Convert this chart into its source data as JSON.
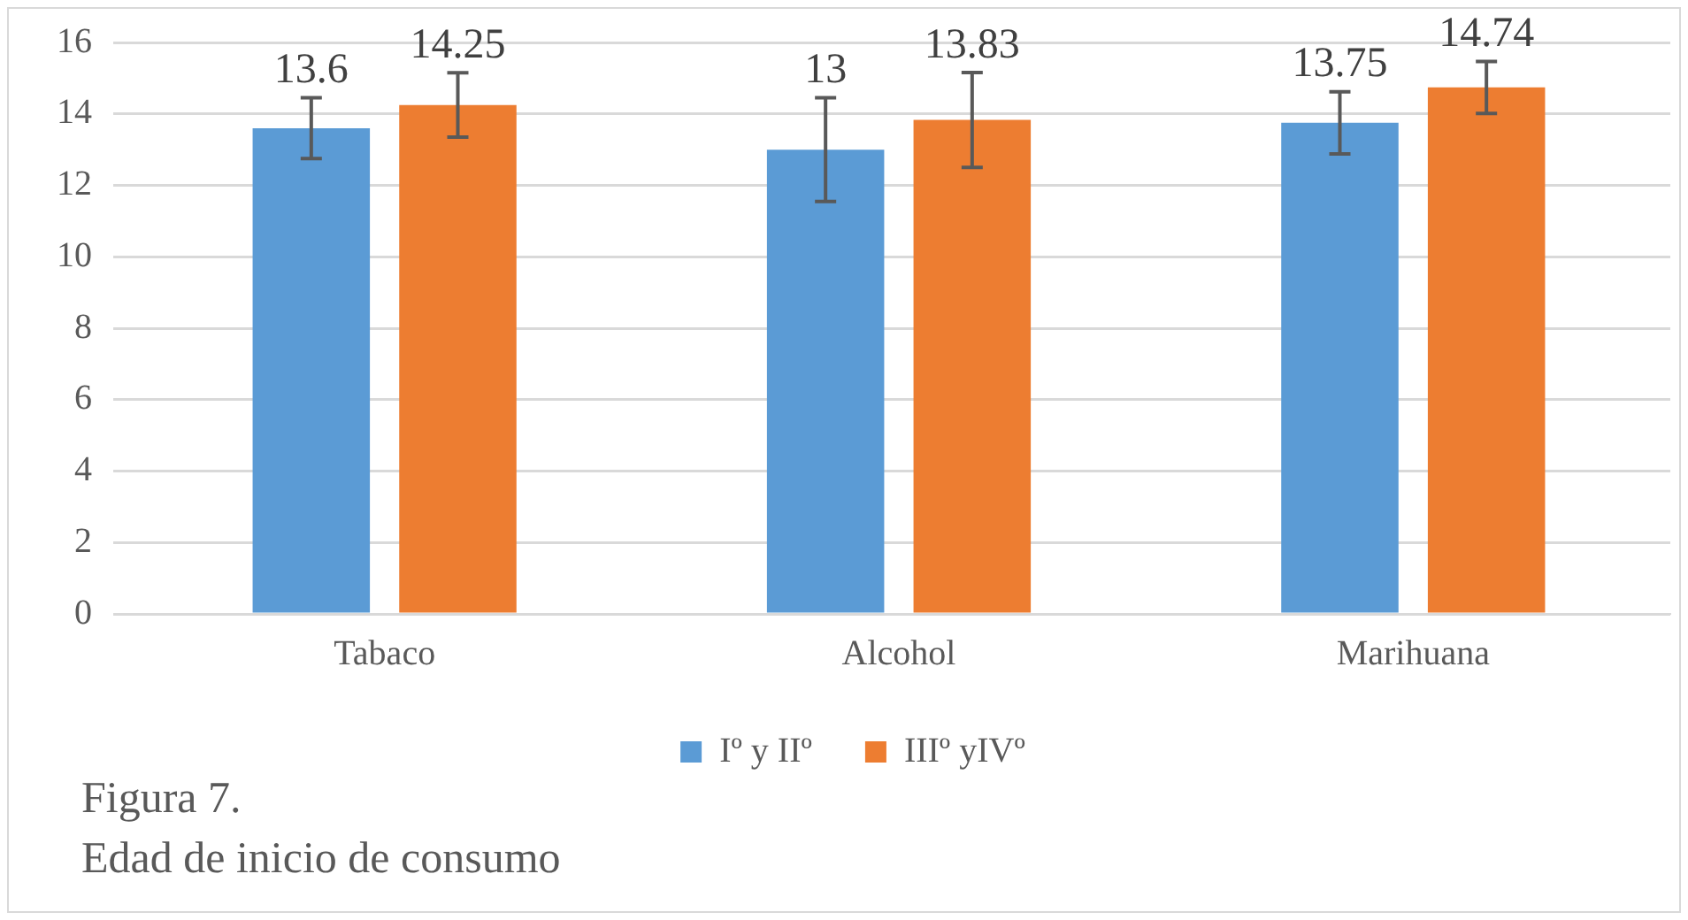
{
  "chart_data": {
    "type": "bar",
    "title": "Figura 7.",
    "subtitle": "Edad de inicio de consumo",
    "categories": [
      "Tabaco",
      "Alcohol",
      "Marihuana"
    ],
    "series": [
      {
        "name": "Iº y IIº",
        "color": "#5b9bd5",
        "values": [
          13.6,
          13,
          13.75
        ],
        "errors": [
          0.85,
          1.45,
          0.87
        ]
      },
      {
        "name": "IIIº yIVº",
        "color": "#ed7d31",
        "values": [
          14.25,
          13.83,
          14.74
        ],
        "errors": [
          0.9,
          1.33,
          0.73
        ]
      }
    ],
    "ylim": [
      0,
      16
    ],
    "yticks": [
      0,
      2,
      4,
      6,
      8,
      10,
      12,
      14,
      16
    ],
    "grid": "y",
    "legend": "bottom",
    "data_labels": true
  }
}
